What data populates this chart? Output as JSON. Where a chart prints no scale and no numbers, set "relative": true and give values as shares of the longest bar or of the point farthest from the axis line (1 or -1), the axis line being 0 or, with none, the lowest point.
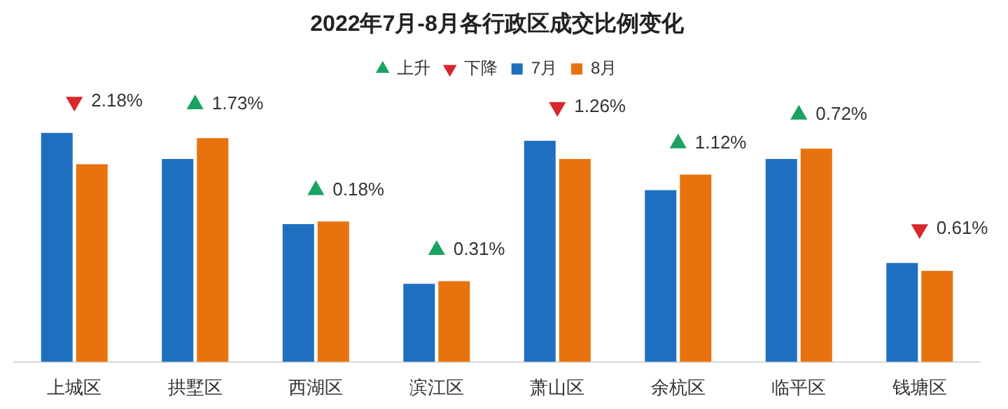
{
  "chart_data": {
    "type": "bar",
    "title": "2022年7月-8月各行政区成交比例变化",
    "relative": true,
    "legend": "top",
    "grid": false,
    "categories": [
      "上城区",
      "拱墅区",
      "西湖区",
      "滨江区",
      "萧山区",
      "余杭区",
      "临平区",
      "钱塘区"
    ],
    "series": [
      {
        "name": "7月",
        "color": "#1f6fc0",
        "values": [
          0.88,
          0.78,
          0.53,
          0.3,
          0.85,
          0.66,
          0.78,
          0.38
        ]
      },
      {
        "name": "8月",
        "color": "#e8730e",
        "values": [
          0.76,
          0.86,
          0.54,
          0.31,
          0.78,
          0.72,
          0.82,
          0.35
        ]
      },
      {
        "name": "上升",
        "type": "scatter",
        "marker": "triangle",
        "color": "#1aa260",
        "values": [
          null,
          0.99,
          0.66,
          0.43,
          null,
          0.84,
          0.95,
          null
        ]
      },
      {
        "name": "下降",
        "type": "scatter",
        "marker": "triangle-down",
        "color": "#d9262c",
        "values": [
          1,
          null,
          null,
          null,
          0.98,
          null,
          null,
          0.51
        ]
      }
    ],
    "annotations": [
      {
        "text": "2.18%",
        "x": "上城区",
        "y": 1
      },
      {
        "text": "1.73%",
        "x": "拱墅区",
        "y": 0.99
      },
      {
        "text": "0.18%",
        "x": "西湖区",
        "y": 0.66
      },
      {
        "text": "0.31%",
        "x": "滨江区",
        "y": 0.43
      },
      {
        "text": "1.26%",
        "x": "萧山区",
        "y": 0.98
      },
      {
        "text": "1.12%",
        "x": "余杭区",
        "y": 0.84
      },
      {
        "text": "0.72%",
        "x": "临平区",
        "y": 0.95
      },
      {
        "text": "0.61%",
        "x": "钱塘区",
        "y": 0.51
      }
    ]
  }
}
